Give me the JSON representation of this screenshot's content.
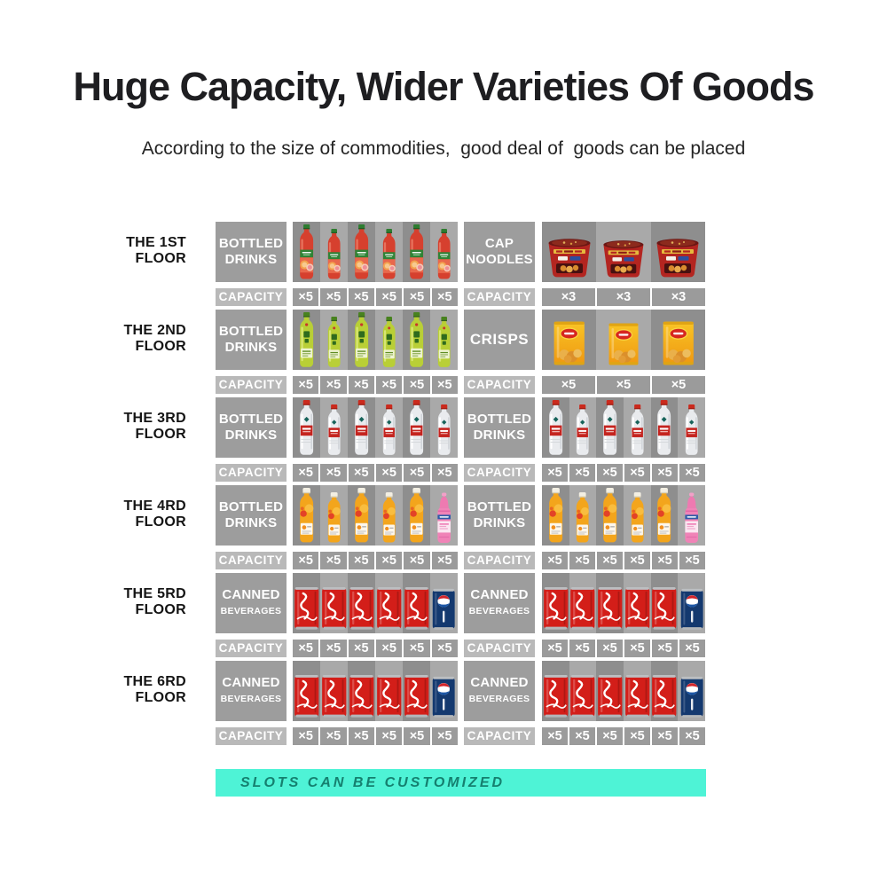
{
  "title": "Huge Capacity, Wider Varieties Of Goods",
  "subtitle": "According to the size of commodities,  good deal of  goods can be placed",
  "capacity_label": "CAPACITY",
  "banner": {
    "text": "SLOTS CAN BE CUSTOMIZED",
    "bg_color": "#4ef3d6",
    "text_color": "#15806f"
  },
  "colors": {
    "label_box": "#9d9d9d",
    "capacity_label_box": "#b9b9b9",
    "capacity_cell": "#9b9b9b",
    "slot_dark": "#8e8e8e",
    "slot_light": "#a9a9a9",
    "title_text": "#1e1e21"
  },
  "rows": [
    {
      "floor": [
        "THE 1ST",
        "FLOOR"
      ],
      "left": {
        "label": [
          "BOTTLED",
          "DRINKS"
        ],
        "icons": [
          "red-juice-bottle",
          "red-juice-bottle",
          "red-juice-bottle",
          "red-juice-bottle",
          "red-juice-bottle",
          "red-juice-bottle"
        ],
        "capacities": [
          "×5",
          "×5",
          "×5",
          "×5",
          "×5",
          "×5"
        ]
      },
      "right": {
        "label": [
          "CAP",
          "NOODLES"
        ],
        "icons": [
          "cup-noodles",
          "cup-noodles",
          "cup-noodles"
        ],
        "capacities": [
          "×3",
          "×3",
          "×3"
        ]
      }
    },
    {
      "floor": [
        "THE 2ND",
        "FLOOR"
      ],
      "left": {
        "label": [
          "BOTTLED",
          "DRINKS"
        ],
        "icons": [
          "green-tea-bottle",
          "green-tea-bottle",
          "green-tea-bottle",
          "green-tea-bottle",
          "green-tea-bottle",
          "green-tea-bottle"
        ],
        "capacities": [
          "×5",
          "×5",
          "×5",
          "×5",
          "×5",
          "×5"
        ]
      },
      "right": {
        "label": [
          "CRISPS"
        ],
        "icons": [
          "crisps-bag",
          "crisps-bag",
          "crisps-bag"
        ],
        "capacities": [
          "×5",
          "×5",
          "×5"
        ]
      }
    },
    {
      "floor": [
        "THE 3RD",
        "FLOOR"
      ],
      "left": {
        "label": [
          "BOTTLED",
          "DRINKS"
        ],
        "icons": [
          "water-bottle",
          "water-bottle",
          "water-bottle",
          "water-bottle",
          "water-bottle",
          "water-bottle"
        ],
        "capacities": [
          "×5",
          "×5",
          "×5",
          "×5",
          "×5",
          "×5"
        ]
      },
      "right": {
        "label": [
          "BOTTLED",
          "DRINKS"
        ],
        "icons": [
          "water-bottle",
          "water-bottle",
          "water-bottle",
          "water-bottle",
          "water-bottle",
          "water-bottle"
        ],
        "capacities": [
          "×5",
          "×5",
          "×5",
          "×5",
          "×5",
          "×5"
        ]
      }
    },
    {
      "floor": [
        "THE 4RD",
        "FLOOR"
      ],
      "left": {
        "label": [
          "BOTTLED",
          "DRINKS"
        ],
        "icons": [
          "orange-juice-bottle",
          "orange-juice-bottle",
          "orange-juice-bottle",
          "orange-juice-bottle",
          "orange-juice-bottle",
          "pink-drink-bottle"
        ],
        "capacities": [
          "×5",
          "×5",
          "×5",
          "×5",
          "×5",
          "×5"
        ]
      },
      "right": {
        "label": [
          "BOTTLED",
          "DRINKS"
        ],
        "icons": [
          "orange-juice-bottle",
          "orange-juice-bottle",
          "orange-juice-bottle",
          "orange-juice-bottle",
          "orange-juice-bottle",
          "pink-drink-bottle"
        ],
        "capacities": [
          "×5",
          "×5",
          "×5",
          "×5",
          "×5",
          "×5"
        ]
      }
    },
    {
      "floor": [
        "THE 5RD",
        "FLOOR"
      ],
      "left": {
        "label": [
          "CANNED",
          "BEVERAGES"
        ],
        "shrink_line2": true,
        "icons": [
          "cola-can",
          "cola-can",
          "cola-can",
          "cola-can",
          "cola-can",
          "pepsi-can"
        ],
        "capacities": [
          "×5",
          "×5",
          "×5",
          "×5",
          "×5",
          "×5"
        ]
      },
      "right": {
        "label": [
          "CANNED",
          "BEVERAGES"
        ],
        "shrink_line2": true,
        "icons": [
          "cola-can",
          "cola-can",
          "cola-can",
          "cola-can",
          "cola-can",
          "pepsi-can"
        ],
        "capacities": [
          "×5",
          "×5",
          "×5",
          "×5",
          "×5",
          "×5"
        ]
      }
    },
    {
      "floor": [
        "THE 6RD",
        "FLOOR"
      ],
      "left": {
        "label": [
          "CANNED",
          "BEVERAGES"
        ],
        "shrink_line2": true,
        "icons": [
          "cola-can",
          "cola-can",
          "cola-can",
          "cola-can",
          "cola-can",
          "pepsi-can"
        ],
        "capacities": [
          "×5",
          "×5",
          "×5",
          "×5",
          "×5",
          "×5"
        ]
      },
      "right": {
        "label": [
          "CANNED",
          "BEVERAGES"
        ],
        "shrink_line2": true,
        "icons": [
          "cola-can",
          "cola-can",
          "cola-can",
          "cola-can",
          "cola-can",
          "pepsi-can"
        ],
        "capacities": [
          "×5",
          "×5",
          "×5",
          "×5",
          "×5",
          "×5"
        ]
      }
    }
  ]
}
